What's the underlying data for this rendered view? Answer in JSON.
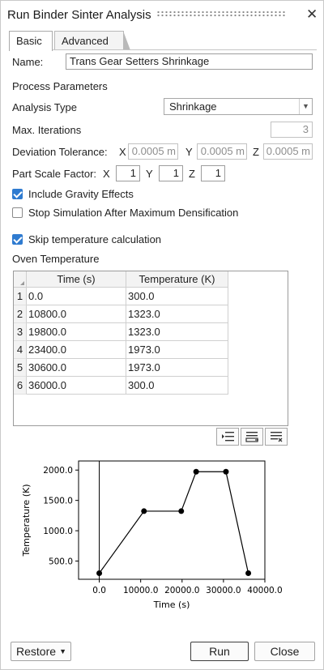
{
  "window": {
    "title": "Run Binder Sinter Analysis"
  },
  "tabs": [
    {
      "label": "Basic"
    },
    {
      "label": "Advanced"
    }
  ],
  "name_field": {
    "label": "Name:",
    "value": "Trans Gear Setters Shrinkage"
  },
  "process": {
    "heading": "Process Parameters",
    "analysis_type": {
      "label": "Analysis Type",
      "value": "Shrinkage"
    },
    "max_iterations": {
      "label": "Max. Iterations",
      "value": "3"
    },
    "deviation_tolerance": {
      "label": "Deviation Tolerance:",
      "x_label": "X",
      "x_value": "0.0005 m",
      "y_label": "Y",
      "y_value": "0.0005 m",
      "z_label": "Z",
      "z_value": "0.0005 m"
    },
    "part_scale_factor": {
      "label": "Part Scale Factor:",
      "x_label": "X",
      "x_value": "1",
      "y_label": "Y",
      "y_value": "1",
      "z_label": "Z",
      "z_value": "1"
    }
  },
  "options": {
    "include_gravity": {
      "label": "Include Gravity Effects",
      "checked": true
    },
    "stop_simulation": {
      "label": "Stop Simulation After Maximum Densification",
      "checked": false
    },
    "skip_temperature": {
      "label": "Skip temperature calculation",
      "checked": true
    }
  },
  "oven": {
    "heading": "Oven Temperature",
    "columns": [
      "Time (s)",
      "Temperature (K)"
    ],
    "rows": [
      {
        "index": "1",
        "time": "0.0",
        "temp": "300.0"
      },
      {
        "index": "2",
        "time": "10800.0",
        "temp": "1323.0"
      },
      {
        "index": "3",
        "time": "19800.0",
        "temp": "1323.0"
      },
      {
        "index": "4",
        "time": "23400.0",
        "temp": "1973.0"
      },
      {
        "index": "5",
        "time": "30600.0",
        "temp": "1973.0"
      },
      {
        "index": "6",
        "time": "36000.0",
        "temp": "300.0"
      }
    ],
    "toolbar_icons": [
      "insert-row-icon",
      "add-row-icon",
      "delete-row-icon"
    ]
  },
  "chart_data": {
    "type": "line",
    "x": [
      0,
      10800,
      19800,
      23400,
      30600,
      36000
    ],
    "y": [
      300,
      1323,
      1323,
      1973,
      1973,
      300
    ],
    "xlabel": "Time (s)",
    "ylabel": "Temperature (K)",
    "xlim": [
      -5000,
      40000
    ],
    "ylim": [
      200,
      2150
    ],
    "xticks": [
      0,
      10000,
      20000,
      30000,
      40000
    ],
    "xtick_labels": [
      "0.0",
      "10000.0",
      "20000.0",
      "30000.0",
      "40000.0"
    ],
    "yticks": [
      500,
      1000,
      1500,
      2000
    ],
    "ytick_labels": [
      "500.0",
      "1000.0",
      "1500.0",
      "2000.0"
    ],
    "grid": false
  },
  "footer": {
    "restore": "Restore",
    "run": "Run",
    "close": "Close"
  }
}
